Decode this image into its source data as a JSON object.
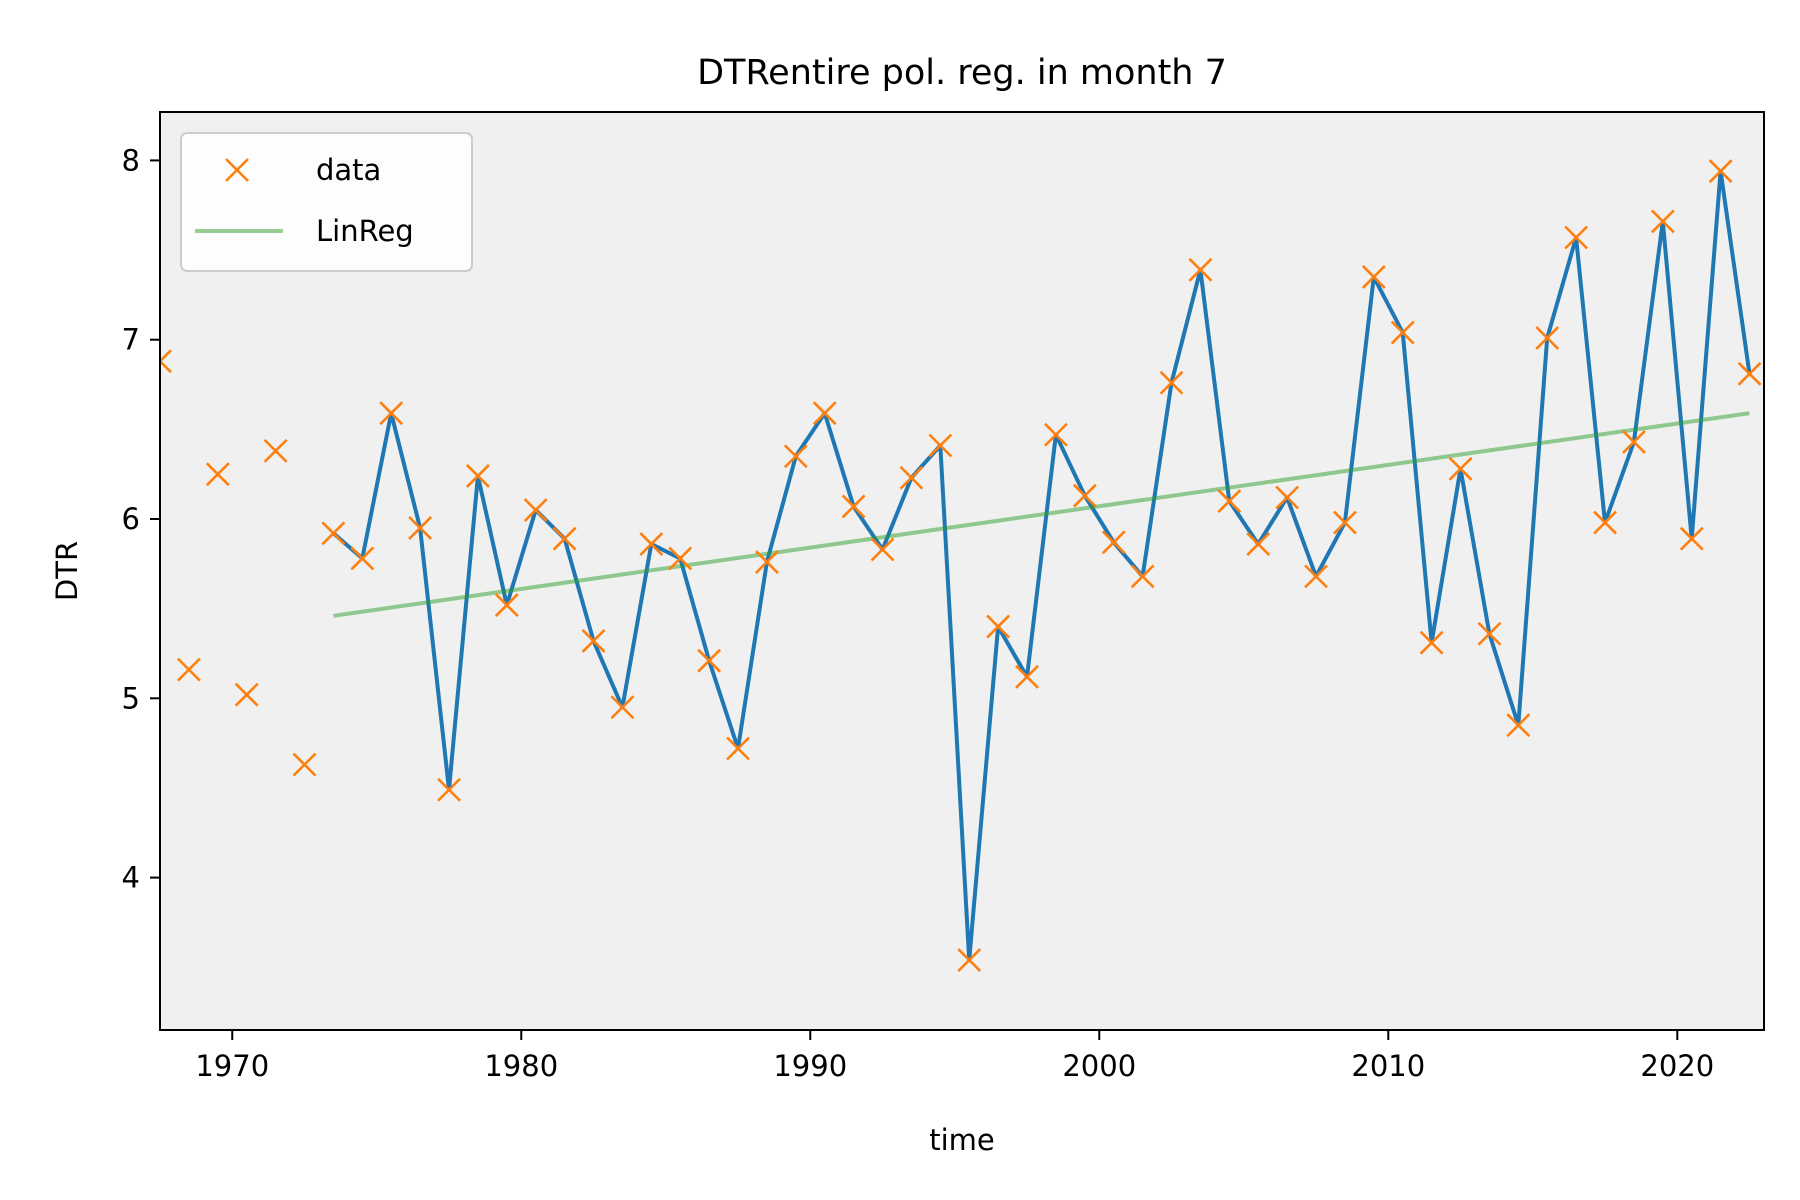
{
  "chart_data": {
    "type": "line",
    "title": "DTRentire pol. reg. in month 7",
    "xlabel": "time",
    "ylabel": "DTR",
    "xlim": [
      1967.5,
      2023.0
    ],
    "ylim": [
      3.15,
      8.27
    ],
    "xticks": [
      1970,
      1980,
      1990,
      2000,
      2010,
      2020
    ],
    "yticks": [
      4,
      5,
      6,
      7,
      8
    ],
    "grid": false,
    "legend_position": "top-left",
    "background_color": "#f0f0f0",
    "colors": {
      "data": "#ff7f0e",
      "line": "#1f77b4",
      "linreg": "#2ca02c"
    },
    "legend": [
      {
        "label": "data",
        "marker": "x-marker"
      },
      {
        "label": "LinReg",
        "marker": "line"
      }
    ],
    "series": [
      {
        "name": "data",
        "style": "markers",
        "x": [
          1967.5,
          1968.5,
          1969.5,
          1970.5,
          1971.5,
          1972.5,
          1973.5,
          1974.5,
          1975.5,
          1976.5,
          1977.5,
          1978.5,
          1979.5,
          1980.5,
          1981.5,
          1982.5,
          1983.5,
          1984.5,
          1985.5,
          1986.5,
          1987.5,
          1988.5,
          1989.5,
          1990.5,
          1991.5,
          1992.5,
          1993.5,
          1994.5,
          1995.5,
          1996.5,
          1997.5,
          1998.5,
          1999.5,
          2000.5,
          2001.5,
          2002.5,
          2003.5,
          2004.5,
          2005.5,
          2006.5,
          2007.5,
          2008.5,
          2009.5,
          2010.5,
          2011.5,
          2012.5,
          2013.5,
          2014.5,
          2015.5,
          2016.5,
          2017.5,
          2018.5,
          2019.5,
          2020.5,
          2021.5,
          2022.5
        ],
        "y": [
          6.88,
          5.16,
          6.25,
          5.02,
          6.38,
          4.63,
          5.92,
          5.78,
          6.59,
          5.95,
          4.49,
          6.24,
          5.52,
          6.05,
          5.89,
          5.32,
          4.95,
          5.86,
          5.78,
          5.21,
          4.72,
          5.76,
          6.35,
          6.59,
          6.07,
          5.83,
          6.23,
          6.41,
          3.54,
          5.4,
          5.12,
          6.47,
          6.13,
          5.87,
          5.68,
          6.76,
          7.39,
          6.1,
          5.86,
          6.12,
          5.68,
          5.98,
          7.35,
          7.04,
          5.31,
          6.28,
          5.36,
          4.85,
          7.01,
          7.57,
          5.98,
          6.43,
          7.66,
          5.89,
          7.94,
          6.81
        ]
      },
      {
        "name": "",
        "style": "line",
        "x": [
          1973.5,
          1974.5,
          1975.5,
          1976.5,
          1977.5,
          1978.5,
          1979.5,
          1980.5,
          1981.5,
          1982.5,
          1983.5,
          1984.5,
          1985.5,
          1986.5,
          1987.5,
          1988.5,
          1989.5,
          1990.5,
          1991.5,
          1992.5,
          1993.5,
          1994.5,
          1995.5,
          1996.5,
          1997.5,
          1998.5,
          1999.5,
          2000.5,
          2001.5,
          2002.5,
          2003.5,
          2004.5,
          2005.5,
          2006.5,
          2007.5,
          2008.5,
          2009.5,
          2010.5,
          2011.5,
          2012.5,
          2013.5,
          2014.5,
          2015.5,
          2016.5,
          2017.5,
          2018.5,
          2019.5,
          2020.5,
          2021.5,
          2022.5
        ],
        "y": [
          5.92,
          5.78,
          6.59,
          5.95,
          4.49,
          6.24,
          5.52,
          6.05,
          5.89,
          5.32,
          4.95,
          5.86,
          5.78,
          5.21,
          4.72,
          5.76,
          6.35,
          6.59,
          6.07,
          5.83,
          6.23,
          6.41,
          3.54,
          5.4,
          5.12,
          6.47,
          6.13,
          5.87,
          5.68,
          6.76,
          7.39,
          6.1,
          5.86,
          6.12,
          5.68,
          5.98,
          7.35,
          7.04,
          5.31,
          6.28,
          5.36,
          4.85,
          7.01,
          7.57,
          5.98,
          6.43,
          7.66,
          5.89,
          7.94,
          6.81
        ]
      },
      {
        "name": "LinReg",
        "style": "line",
        "x": [
          1973.5,
          2022.5
        ],
        "y": [
          5.46,
          6.59
        ]
      }
    ]
  }
}
